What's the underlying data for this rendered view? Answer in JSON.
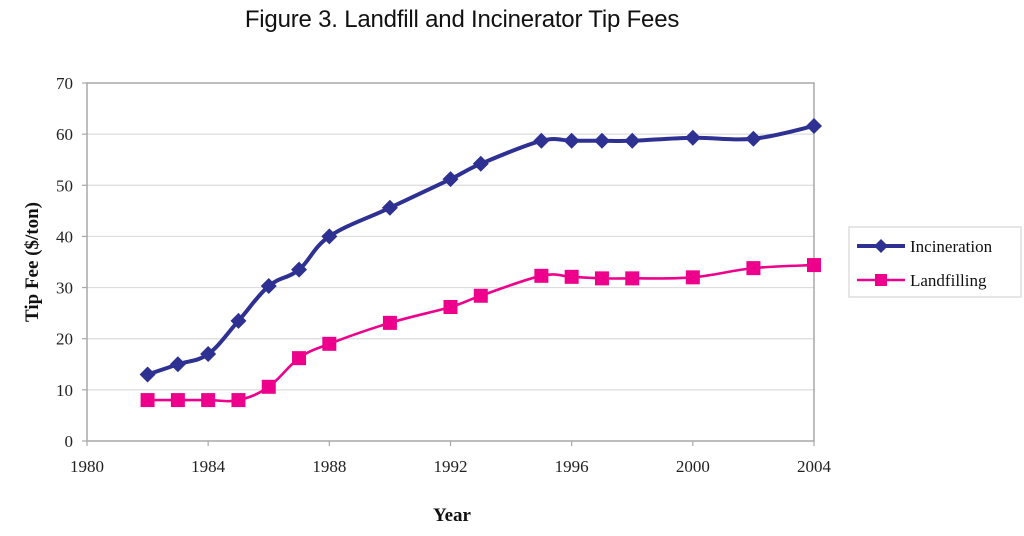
{
  "chart_data": {
    "type": "line",
    "title": "Figure 3.  Landfill and Incinerator Tip Fees",
    "xlabel": "Year",
    "ylabel": "Tip Fee ($/ton)",
    "xlim": [
      1980,
      2004
    ],
    "ylim": [
      0,
      70
    ],
    "x_ticks": [
      1980,
      1984,
      1988,
      1992,
      1996,
      2000,
      2004
    ],
    "y_ticks": [
      0,
      10,
      20,
      30,
      40,
      50,
      60,
      70
    ],
    "grid": "horizontal",
    "legend_position": "right",
    "series": [
      {
        "name": "Incineration",
        "color": "#2E3192",
        "marker": "diamond",
        "x": [
          1982,
          1983,
          1984,
          1985,
          1986,
          1987,
          1988,
          1990,
          1992,
          1993,
          1995,
          1996,
          1997,
          1998,
          2000,
          2002,
          2004
        ],
        "values": [
          13,
          15,
          17,
          23.5,
          30.3,
          33.5,
          40,
          45.6,
          51.2,
          54.2,
          58.7,
          58.7,
          58.7,
          58.7,
          59.3,
          59.1,
          61.6
        ]
      },
      {
        "name": "Landfilling",
        "color": "#EC008C",
        "marker": "square",
        "x": [
          1982,
          1983,
          1984,
          1985,
          1986,
          1987,
          1988,
          1990,
          1992,
          1993,
          1995,
          1996,
          1997,
          1998,
          2000,
          2002,
          2004
        ],
        "values": [
          8,
          8,
          8,
          8,
          10.6,
          16.2,
          19,
          23.1,
          26.2,
          28.4,
          32.3,
          32.1,
          31.8,
          31.8,
          32,
          33.8,
          34.4
        ]
      }
    ]
  }
}
